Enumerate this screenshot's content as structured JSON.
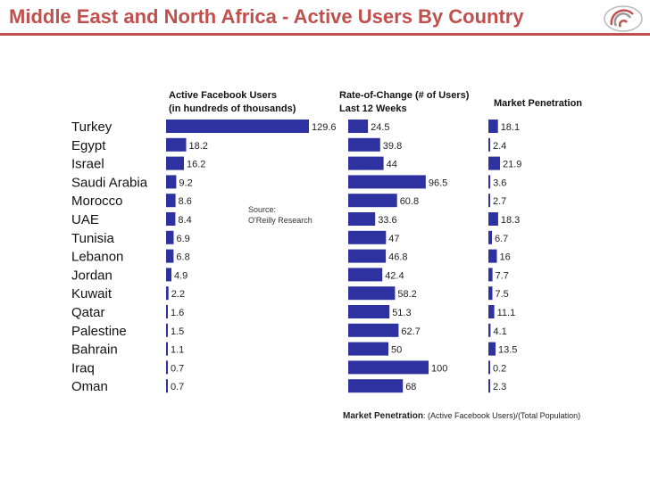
{
  "page": {
    "title": "Middle East and North Africa - Active Users By Country"
  },
  "headers": {
    "users_line1": "Active Facebook Users",
    "users_line2": "(in hundreds of thousands)",
    "rate_line1": "Rate-of-Change (# of Users)",
    "rate_line2": "Last 12 Weeks",
    "penetration": "Market Penetration"
  },
  "source": {
    "line1": "Source:",
    "line2": "O'Reilly Research"
  },
  "footnote": {
    "label": "Market Penetration",
    "text": ": (Active Facebook Users)/(Total Population)"
  },
  "colors": {
    "bar": "#2e31a0",
    "title": "#c0504d"
  },
  "chart_data": {
    "type": "bar",
    "orientation": "horizontal",
    "categories": [
      "Turkey",
      "Egypt",
      "Israel",
      "Saudi Arabia",
      "Morocco",
      "UAE",
      "Tunisia",
      "Lebanon",
      "Jordan",
      "Kuwait",
      "Qatar",
      "Palestine",
      "Bahrain",
      "Iraq",
      "Oman"
    ],
    "series": [
      {
        "name": "Active Facebook Users (in hundreds of thousands)",
        "key": "users",
        "max": 129.6,
        "values": [
          129.6,
          18.2,
          16.2,
          9.2,
          8.6,
          8.4,
          6.9,
          6.8,
          4.9,
          2.2,
          1.6,
          1.5,
          1.1,
          0.7,
          0.7
        ],
        "labels": [
          "129.6",
          "18.2",
          "16.2",
          "9.2",
          "8.6",
          "8.4",
          "6.9",
          "6.8",
          "4.9",
          "2.2",
          "1.6",
          "1.5",
          "1.1",
          "0.7",
          "0.7"
        ]
      },
      {
        "name": "Rate-of-Change (# of Users) Last 12 Weeks",
        "key": "rate",
        "max": 100,
        "values": [
          24.5,
          39.8,
          44,
          96.5,
          60.8,
          33.6,
          47,
          46.8,
          42.4,
          58.2,
          51.3,
          62.7,
          50,
          100,
          68
        ],
        "labels": [
          "24.5",
          "39.8",
          "44",
          "96.5",
          "60.8",
          "33.6",
          "47",
          "46.8",
          "42.4",
          "58.2",
          "51.3",
          "62.7",
          "50",
          "100",
          "68"
        ]
      },
      {
        "name": "Market Penetration",
        "key": "penetration",
        "max": 21.9,
        "values": [
          18.1,
          2.4,
          21.9,
          3.6,
          2.7,
          18.3,
          6.7,
          16,
          7.7,
          7.5,
          11.1,
          4.1,
          13.5,
          0.2,
          2.3
        ],
        "labels": [
          "18.1",
          "2.4",
          "21.9",
          "3.6",
          "2.7",
          "18.3",
          "6.7",
          "16",
          "7.7",
          "7.5",
          "11.1",
          "4.1",
          "13.5",
          "0.2",
          "2.3"
        ]
      }
    ]
  }
}
